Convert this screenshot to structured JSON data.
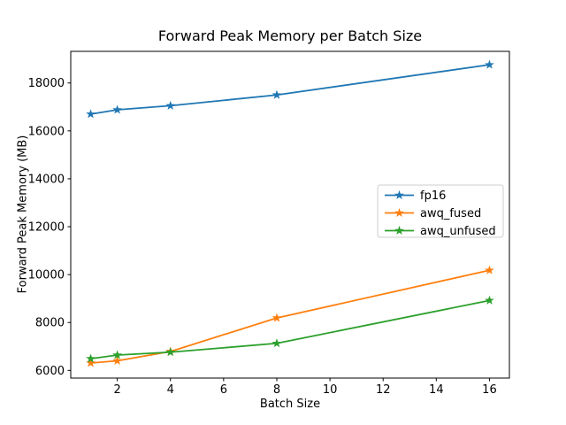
{
  "figure": {
    "background": "#ffffff"
  },
  "chart_data": {
    "type": "line",
    "title": "Forward Peak Memory per Batch Size",
    "xlabel": "Batch Size",
    "ylabel": "Forward Peak Memory (MB)",
    "x": [
      1,
      2,
      4,
      8,
      16
    ],
    "series": [
      {
        "name": "fp16",
        "color": "#1f77b4",
        "marker": "star",
        "values": [
          16700,
          16880,
          17050,
          17500,
          18760
        ]
      },
      {
        "name": "awq_fused",
        "color": "#ff7f0e",
        "marker": "star",
        "values": [
          6310,
          6400,
          6790,
          8190,
          10180
        ]
      },
      {
        "name": "awq_unfused",
        "color": "#2ca02c",
        "marker": "star",
        "values": [
          6490,
          6640,
          6760,
          7130,
          8920
        ]
      }
    ],
    "xlim": [
      0.25,
      16.75
    ],
    "ylim": [
      5680,
      19320
    ],
    "xticks": [
      2,
      4,
      6,
      8,
      10,
      12,
      14,
      16
    ],
    "yticks": [
      6000,
      8000,
      10000,
      12000,
      14000,
      16000,
      18000
    ],
    "grid": false,
    "legend": {
      "position": "center-right",
      "entries": [
        "fp16",
        "awq_fused",
        "awq_unfused"
      ],
      "border_color": "#cccccc",
      "background": "#ffffff"
    },
    "axis_color": "#000000"
  }
}
